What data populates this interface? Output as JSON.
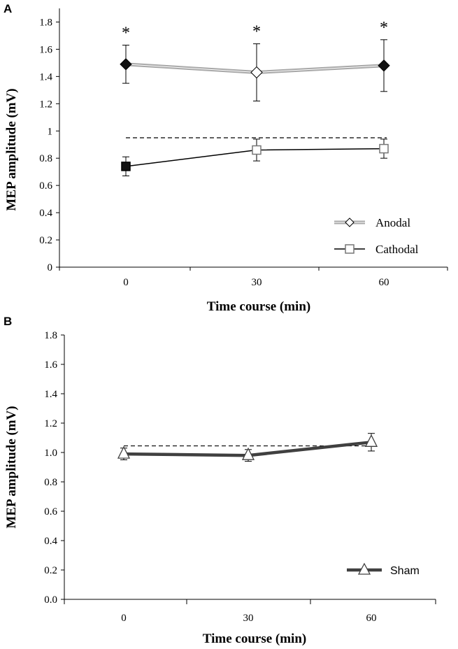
{
  "chart_data": [
    {
      "panel": "A",
      "type": "line",
      "xlabel": "Time course (min)",
      "ylabel": "MEP amplitude (mV)",
      "categories": [
        "0",
        "30",
        "60"
      ],
      "ylim": [
        0,
        1.9
      ],
      "yticks": [
        "0",
        "0.2",
        "0.4",
        "0.6",
        "0.8",
        "1",
        "1.2",
        "1.4",
        "1.6",
        "1.8"
      ],
      "reference_line": 0.95,
      "significance_mark": "*",
      "legend_position": "bottom-right",
      "series": [
        {
          "name": "Anodal",
          "marker": "diamond",
          "color": "#a8a8a8",
          "values": [
            1.49,
            1.43,
            1.48
          ],
          "errors": [
            0.14,
            0.21,
            0.19
          ],
          "filled": [
            true,
            false,
            true
          ],
          "significant": [
            true,
            true,
            true
          ]
        },
        {
          "name": "Cathodal",
          "marker": "square",
          "color": "#000000",
          "values": [
            0.74,
            0.86,
            0.87
          ],
          "errors": [
            0.07,
            0.08,
            0.07
          ],
          "filled": [
            true,
            false,
            false
          ]
        }
      ]
    },
    {
      "panel": "B",
      "type": "line",
      "xlabel": "Time course (min)",
      "ylabel": "MEP amplitude (mV)",
      "categories": [
        "0",
        "30",
        "60"
      ],
      "ylim": [
        0,
        1.8
      ],
      "yticks": [
        "0.0",
        "0.2",
        "0.4",
        "0.6",
        "0.8",
        "1.0",
        "1.2",
        "1.4",
        "1.6",
        "1.8"
      ],
      "reference_line": 1.045,
      "legend_position": "bottom-right",
      "series": [
        {
          "name": "Sham",
          "marker": "triangle",
          "color": "#404040",
          "values": [
            0.99,
            0.98,
            1.07
          ],
          "errors": [
            0.04,
            0.04,
            0.06
          ]
        }
      ]
    }
  ]
}
